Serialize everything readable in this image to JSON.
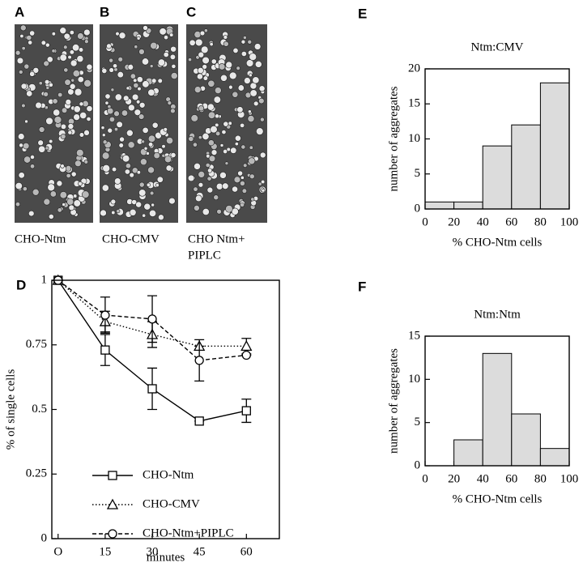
{
  "panels": [
    "A",
    "B",
    "C",
    "D",
    "E",
    "F"
  ],
  "images": [
    {
      "caption": [
        "CHO-Ntm"
      ]
    },
    {
      "caption": [
        "CHO-CMV"
      ]
    },
    {
      "caption": [
        "CHO Ntm+",
        "PIPLC"
      ]
    }
  ],
  "chart_data": [
    {
      "type": "line",
      "x_label": "minutes",
      "y_label": "% of single cells",
      "x": [
        0,
        15,
        30,
        45,
        60
      ],
      "xlim": [
        -2,
        70.5
      ],
      "xticks": [
        {
          "value": 0,
          "label": "O"
        },
        15,
        30,
        45,
        60
      ],
      "ylim": [
        0,
        1
      ],
      "yticks": [
        0,
        0.25,
        0.5,
        0.75,
        1
      ],
      "legend": "lower left",
      "series": [
        {
          "name": "CHO-Ntm",
          "color": "#000000",
          "dash": "solid",
          "marker": "square",
          "values": [
            1,
            0.73,
            0.58,
            0.455,
            0.495
          ],
          "errors": [
            0,
            0.06,
            0.08,
            0,
            0.045
          ]
        },
        {
          "name": "CHO-CMV",
          "color": "#000000",
          "dash": "dotted",
          "marker": "triangle",
          "values": [
            1,
            0.84,
            0.79,
            0.745,
            0.745
          ],
          "errors": [
            0,
            0.04,
            0.05,
            0,
            0.03
          ]
        },
        {
          "name": "CHO-Ntm+PIPLC",
          "color": "#000000",
          "dash": "dashed",
          "marker": "circle",
          "values": [
            1,
            0.865,
            0.85,
            0.69,
            0.71
          ],
          "errors": [
            0,
            0.07,
            0.09,
            0.08,
            0
          ]
        }
      ]
    },
    {
      "type": "histogram",
      "title": "Ntm:CMV",
      "x_label": "% CHO-Ntm cells",
      "y_label": "number of aggregates",
      "bins": [
        0,
        20,
        40,
        60,
        80,
        100
      ],
      "values": [
        1,
        1,
        9,
        12,
        18
      ],
      "color": "#dcdcdc",
      "xlim": [
        0,
        100
      ],
      "xticks": [
        0,
        20,
        40,
        60,
        80,
        100
      ],
      "ylim": [
        0,
        20
      ],
      "yticks": [
        0,
        5,
        10,
        15,
        20
      ]
    },
    {
      "type": "histogram",
      "title": "Ntm:Ntm",
      "x_label": "% CHO-Ntm cells",
      "y_label": "number of aggregates",
      "bins": [
        0,
        20,
        40,
        60,
        80,
        100
      ],
      "values": [
        0,
        3,
        13,
        6,
        2
      ],
      "color": "#dcdcdc",
      "xlim": [
        0,
        100
      ],
      "xticks": [
        0,
        20,
        40,
        60,
        80,
        100
      ],
      "ylim": [
        0,
        15
      ],
      "yticks": [
        0,
        5,
        10,
        15
      ]
    }
  ]
}
